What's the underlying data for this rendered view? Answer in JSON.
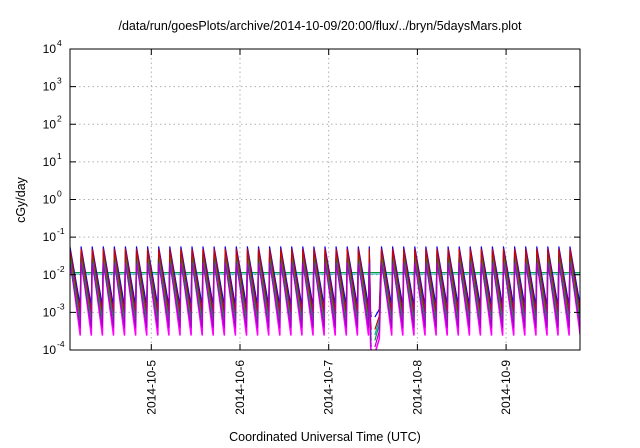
{
  "chart_data": {
    "type": "line",
    "title": "/data/run/goesPlots/archive/2014-10-09/20:00/flux/../bryn/5daysMars.plot",
    "xlabel": "Coordinated Universal Time (UTC)",
    "ylabel": "cGy/day",
    "y_scale": "log",
    "ylim": [
      0.0001,
      10000
    ],
    "y_ticks": [
      {
        "exp": "-4",
        "value": 0.0001
      },
      {
        "exp": "-3",
        "value": 0.001
      },
      {
        "exp": "-2",
        "value": 0.01
      },
      {
        "exp": "-1",
        "value": 0.1
      },
      {
        "exp": "0",
        "value": 1
      },
      {
        "exp": "1",
        "value": 10
      },
      {
        "exp": "2",
        "value": 100
      },
      {
        "exp": "3",
        "value": 1000
      },
      {
        "exp": "4",
        "value": 10000
      }
    ],
    "y_tick_base": "10",
    "xlim": [
      "2014-10-04T02:00",
      "2014-10-09T20:00"
    ],
    "x_ticks": [
      "2014-10-5",
      "2014-10-6",
      "2014-10-7",
      "2014-10-8",
      "2014-10-9"
    ],
    "x_tick_values": [
      "2014-10-05",
      "2014-10-06",
      "2014-10-07",
      "2014-10-08",
      "2014-10-09"
    ],
    "grid": true,
    "legend": "none",
    "oscillation_period_hours": 3,
    "data_gap": [
      "2014-10-07T11:30",
      "2014-10-07T12:30"
    ],
    "series": [
      {
        "color": "#ff00ff",
        "peak": 0.028,
        "trough": 0.00025,
        "gap_low": 8e-05
      },
      {
        "color": "#0000ff",
        "peak": 0.055,
        "trough": 0.0015,
        "gap_low": 0.00075
      },
      {
        "color": "#00aaaa",
        "peak": 0.04,
        "trough": 0.0008,
        "gap_low": 0.00025
      },
      {
        "color": "#009933",
        "peak": 0.033,
        "trough": 0.0006,
        "gap_low": 0.00018
      },
      {
        "color": "#cc0000",
        "peak": 0.048,
        "trough": 0.001,
        "gap_low": 0.00035
      },
      {
        "color": "#aa00cc",
        "peak": 0.02,
        "trough": 0.0004,
        "gap_low": 0.00012
      }
    ],
    "baselines": [
      {
        "color": "#009933",
        "value": 0.0115
      },
      {
        "color": "#00aaaa",
        "value": 0.0105
      }
    ]
  }
}
